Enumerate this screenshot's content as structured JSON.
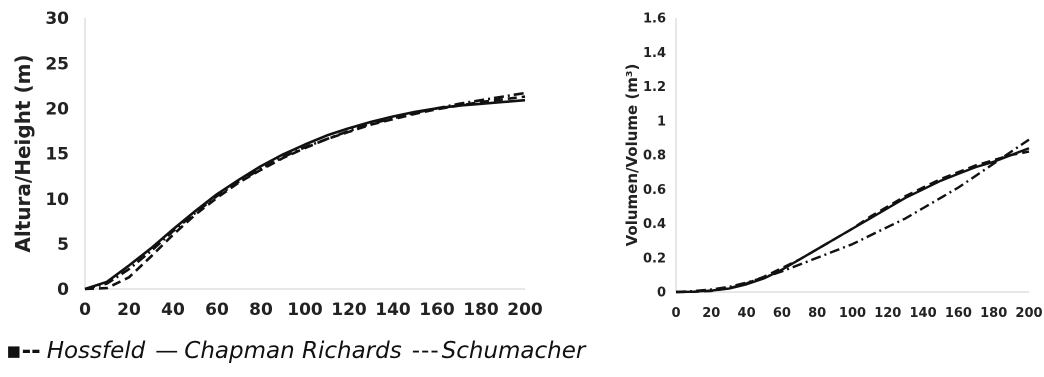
{
  "legend": {
    "hossfeld_symbol": "▪‑‑",
    "hossfeld": "Hossfeld",
    "chapman_symbol": "—",
    "chapman": "Chapman Richards",
    "schumacher_symbol": "‑‑‑",
    "schumacher": "Schumacher"
  },
  "chart_data": [
    {
      "type": "line",
      "ylabel": "Altura/Height (m)",
      "xlabel": "",
      "xlim": [
        0,
        200
      ],
      "ylim": [
        0,
        30
      ],
      "xticks": [
        0,
        20,
        40,
        60,
        80,
        100,
        120,
        140,
        160,
        180,
        200
      ],
      "yticks": [
        0,
        5,
        10,
        15,
        20,
        25,
        30
      ],
      "grid": false,
      "x": [
        0,
        10,
        20,
        30,
        40,
        50,
        60,
        70,
        80,
        90,
        100,
        110,
        120,
        130,
        140,
        150,
        160,
        170,
        180,
        190,
        200
      ],
      "series": [
        {
          "name": "Hossfeld",
          "style": "dashdot",
          "values": [
            0,
            0.6,
            2.2,
            4.2,
            6.4,
            8.4,
            10.3,
            11.9,
            13.3,
            14.6,
            15.7,
            16.6,
            17.5,
            18.3,
            18.9,
            19.5,
            20.0,
            20.5,
            20.9,
            21.3,
            21.7
          ]
        },
        {
          "name": "Chapman Richards",
          "style": "solid",
          "values": [
            0,
            0.8,
            2.6,
            4.5,
            6.6,
            8.6,
            10.5,
            12.1,
            13.6,
            14.9,
            16.0,
            17.0,
            17.8,
            18.5,
            19.1,
            19.6,
            20.0,
            20.3,
            20.5,
            20.7,
            20.9
          ]
        },
        {
          "name": "Schumacher",
          "style": "dashed",
          "values": [
            0,
            0.1,
            1.3,
            3.6,
            6.0,
            8.2,
            10.1,
            11.8,
            13.2,
            14.5,
            15.6,
            16.6,
            17.4,
            18.2,
            18.8,
            19.4,
            19.9,
            20.3,
            20.7,
            21.0,
            21.3
          ]
        }
      ]
    },
    {
      "type": "line",
      "ylabel": "Volumen/Volume (m³)",
      "xlabel": "",
      "xlim": [
        0,
        200
      ],
      "ylim": [
        0,
        1.6
      ],
      "xticks": [
        0,
        20,
        40,
        60,
        80,
        100,
        120,
        140,
        160,
        180,
        200
      ],
      "yticks": [
        0,
        0.2,
        0.4,
        0.6,
        0.8,
        1,
        1.2,
        1.4,
        1.6
      ],
      "grid": false,
      "x": [
        0,
        10,
        20,
        30,
        40,
        50,
        60,
        70,
        80,
        90,
        100,
        110,
        120,
        130,
        140,
        150,
        160,
        170,
        180,
        190,
        200
      ],
      "series": [
        {
          "name": "Hossfeld",
          "style": "dashdot",
          "values": [
            0,
            0.005,
            0.015,
            0.03,
            0.055,
            0.085,
            0.12,
            0.16,
            0.2,
            0.24,
            0.28,
            0.33,
            0.38,
            0.43,
            0.49,
            0.55,
            0.61,
            0.68,
            0.75,
            0.82,
            0.89
          ]
        },
        {
          "name": "Chapman Richards",
          "style": "solid",
          "values": [
            0,
            0.002,
            0.008,
            0.02,
            0.045,
            0.08,
            0.13,
            0.19,
            0.25,
            0.31,
            0.37,
            0.43,
            0.49,
            0.55,
            0.6,
            0.65,
            0.69,
            0.73,
            0.76,
            0.8,
            0.84
          ]
        },
        {
          "name": "Schumacher",
          "style": "dashed",
          "values": [
            0,
            0.001,
            0.006,
            0.022,
            0.05,
            0.09,
            0.14,
            0.19,
            0.25,
            0.31,
            0.37,
            0.44,
            0.5,
            0.56,
            0.61,
            0.66,
            0.7,
            0.74,
            0.77,
            0.8,
            0.82
          ]
        }
      ]
    }
  ]
}
